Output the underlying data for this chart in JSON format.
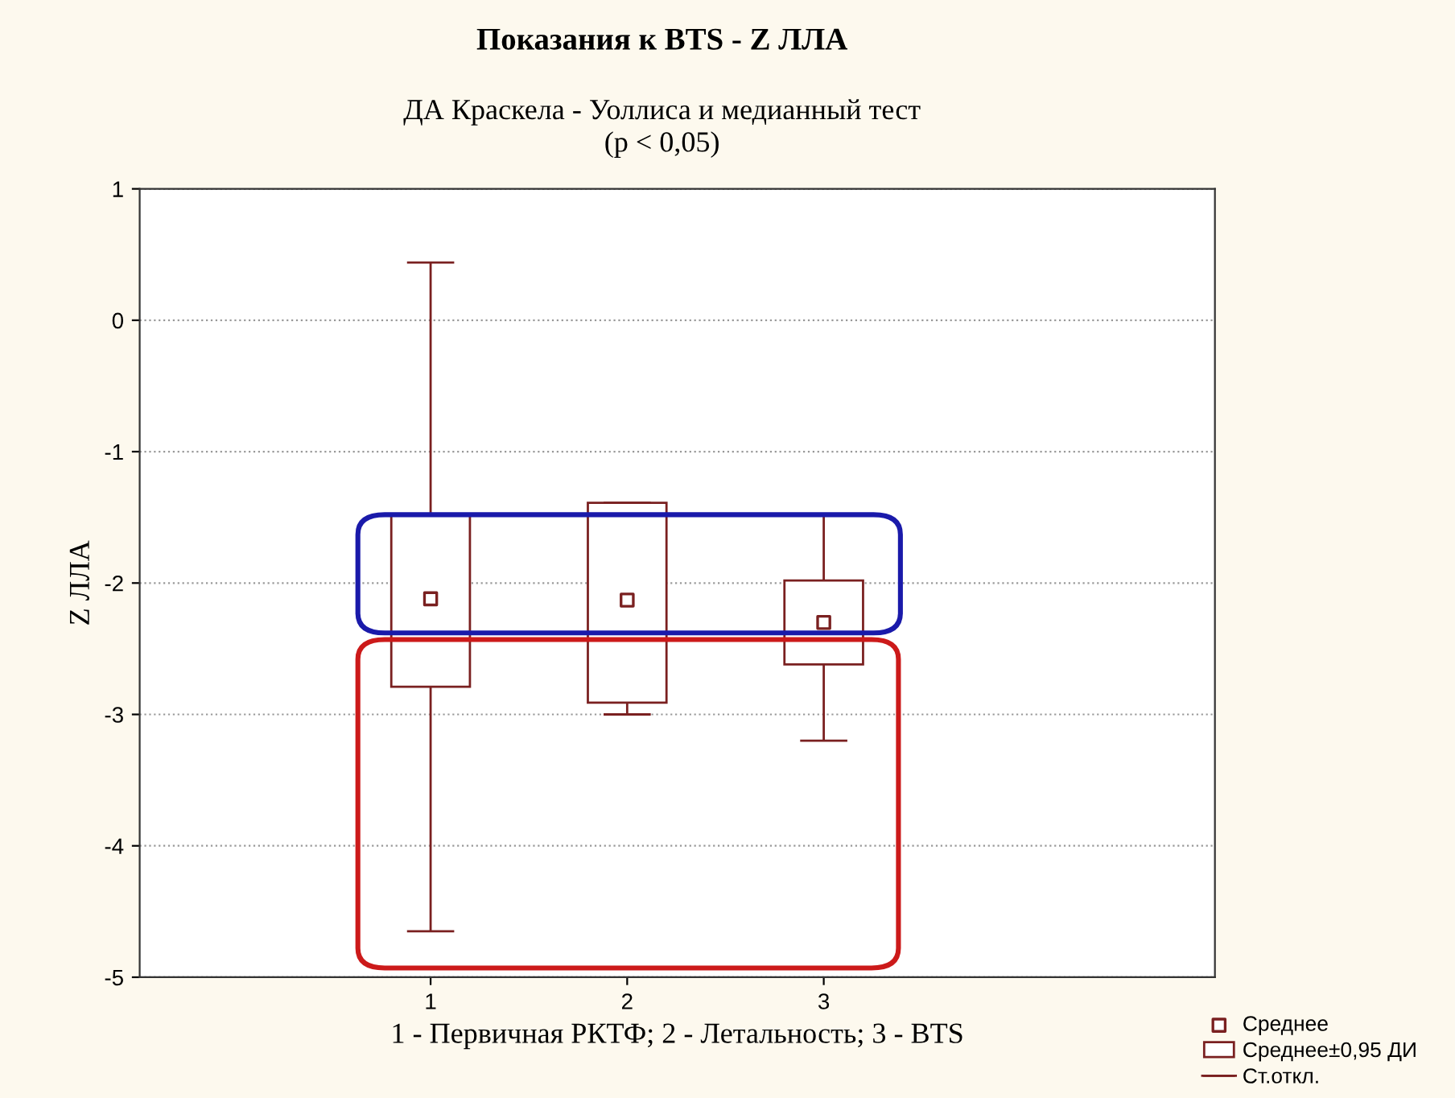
{
  "chart_data": {
    "type": "bar",
    "title": "Показания к BTS - Z ЛЛА",
    "subtitle": "ДА Краскела - Уоллиса и медианный тест\n(p < 0,05)",
    "xlabel": "1 - Первичная РКТФ; 2 - Летальность; 3 - BTS",
    "ylabel": "Z ЛЛА",
    "categories": [
      "1",
      "2",
      "3"
    ],
    "series": [
      {
        "type": "scatter",
        "name": "Среднее",
        "color": "#7a2020",
        "marker": "square",
        "x": [
          "1",
          "2",
          "3"
        ],
        "values": [
          -2.12,
          -2.13,
          -2.3
        ],
        "errors": [
          [
            -4.65,
            0.44
          ],
          [
            -3.0,
            -1.39
          ],
          [
            -3.2,
            -1.48
          ]
        ]
      },
      {
        "name": "Среднее±0,95 ДИ",
        "color": "#7a2020",
        "base": [
          -2.79,
          -2.91,
          -2.62
        ],
        "values": [
          1.31,
          1.52,
          0.64
        ]
      }
    ],
    "annotations": [
      "Ст.откл."
    ],
    "ylim": [
      -5,
      1
    ],
    "yticks": [
      -5,
      -4,
      -3,
      -2,
      -1,
      0,
      1
    ],
    "grid": "y",
    "legend": "bottom right"
  }
}
